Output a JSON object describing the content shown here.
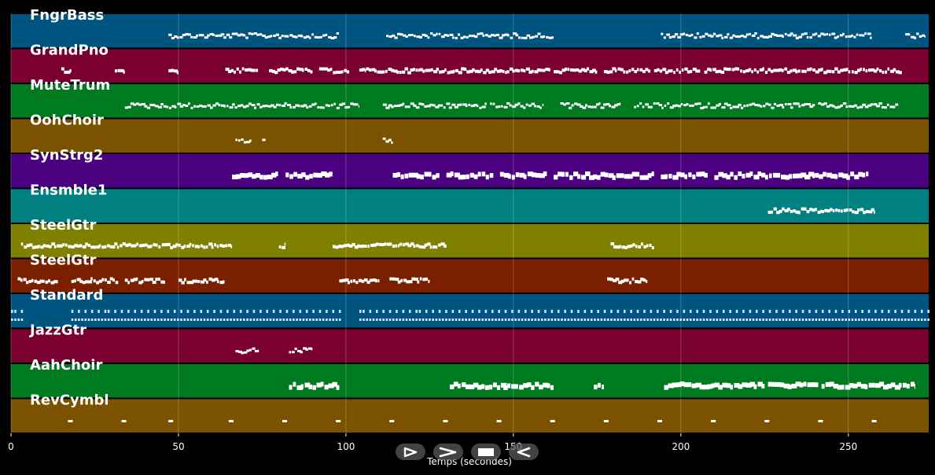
{
  "chart_data": {
    "type": "scatter",
    "title": "",
    "xlabel": "Temps (secondes)",
    "ylabel": "",
    "xlim": [
      0,
      274
    ],
    "x_ticks": [
      "0",
      "50",
      "100",
      "150",
      "200",
      "250"
    ],
    "x_tick_values": [
      0,
      50,
      100,
      150,
      200,
      250
    ],
    "grid": true,
    "tracks": [
      {
        "name": "FngrBass",
        "color": "#005580",
        "segments": [
          [
            47,
            98
          ],
          [
            112,
            162
          ],
          [
            194,
            257
          ],
          [
            267,
            273
          ]
        ],
        "style": "small"
      },
      {
        "name": "GrandPno",
        "color": "#7a0030",
        "segments": [
          [
            15,
            18
          ],
          [
            31,
            34
          ],
          [
            47,
            50
          ],
          [
            64,
            74
          ],
          [
            77,
            90
          ],
          [
            92,
            101
          ],
          [
            104,
            106
          ],
          [
            106,
            122
          ],
          [
            122,
            136
          ],
          [
            136,
            148
          ],
          [
            148,
            161
          ],
          [
            162,
            175
          ],
          [
            177,
            191
          ],
          [
            192,
            206
          ],
          [
            207,
            221
          ],
          [
            221,
            236
          ],
          [
            236,
            251
          ],
          [
            251,
            266
          ]
        ],
        "style": "medium"
      },
      {
        "name": "MuteTrum",
        "color": "#007a20",
        "segments": [
          [
            34,
            52
          ],
          [
            52,
            84
          ],
          [
            84,
            104
          ],
          [
            111,
            142
          ],
          [
            143,
            159
          ],
          [
            164,
            176
          ],
          [
            176,
            182
          ],
          [
            186,
            208
          ],
          [
            208,
            240
          ],
          [
            241,
            265
          ]
        ],
        "style": "small"
      },
      {
        "name": "OohChoir",
        "color": "#7a5200",
        "segments": [
          [
            67,
            72
          ],
          [
            75,
            76
          ],
          [
            111,
            114
          ]
        ],
        "style": "small"
      },
      {
        "name": "SynStrg2",
        "color": "#4b0080",
        "segments": [
          [
            66,
            80
          ],
          [
            82,
            96
          ],
          [
            114,
            128
          ],
          [
            130,
            144
          ],
          [
            146,
            160
          ],
          [
            162,
            176
          ],
          [
            176,
            192
          ],
          [
            194,
            208
          ],
          [
            210,
            224
          ],
          [
            224,
            240
          ],
          [
            240,
            256
          ]
        ],
        "style": "large"
      },
      {
        "name": "Ensmble1",
        "color": "#008080",
        "segments": [
          [
            226,
            242
          ],
          [
            242,
            258
          ]
        ],
        "style": "medium"
      },
      {
        "name": "SteelGtr",
        "color": "#808000",
        "segments": [
          [
            3,
            18
          ],
          [
            18,
            30
          ],
          [
            30,
            45
          ],
          [
            45,
            66
          ],
          [
            80,
            82
          ],
          [
            96,
            104
          ],
          [
            104,
            116
          ],
          [
            116,
            130
          ],
          [
            179,
            192
          ]
        ],
        "style": "medium"
      },
      {
        "name": "SteelGtr",
        "color": "#7a2000",
        "segments": [
          [
            2,
            14
          ],
          [
            18,
            32
          ],
          [
            34,
            46
          ],
          [
            50,
            64
          ],
          [
            98,
            110
          ],
          [
            113,
            125
          ],
          [
            178,
            190
          ]
        ],
        "style": "medium"
      },
      {
        "name": "Standard",
        "color": "#005580",
        "segments": [
          [
            0,
            3
          ],
          [
            18,
            98
          ],
          [
            104,
            274
          ]
        ],
        "style": "drum"
      },
      {
        "name": "JazzGtr",
        "color": "#7a0030",
        "segments": [
          [
            67,
            74
          ],
          [
            83,
            90
          ]
        ],
        "style": "small"
      },
      {
        "name": "AahChoir",
        "color": "#007a20",
        "segments": [
          [
            83,
            98
          ],
          [
            131,
            148
          ],
          [
            147,
            162
          ],
          [
            174,
            177
          ],
          [
            195,
            210
          ],
          [
            210,
            225
          ],
          [
            226,
            241
          ],
          [
            242,
            258
          ],
          [
            258,
            270
          ]
        ],
        "style": "large"
      },
      {
        "name": "RevCymbl",
        "color": "#7a5200",
        "segments": [
          [
            17,
            18
          ],
          [
            33,
            34
          ],
          [
            47,
            48
          ],
          [
            65,
            66
          ],
          [
            81,
            82
          ],
          [
            97,
            98
          ],
          [
            113,
            114
          ],
          [
            129,
            130
          ],
          [
            145,
            146
          ],
          [
            161,
            162
          ],
          [
            177,
            178
          ],
          [
            193,
            194
          ],
          [
            209,
            210
          ],
          [
            225,
            226
          ],
          [
            241,
            242
          ],
          [
            257,
            258
          ]
        ],
        "style": "single"
      }
    ]
  },
  "controls": {
    "play_icon": "play-icon",
    "fast_forward_icon": "fast-forward-icon",
    "stop_icon": "stop-icon",
    "rewind_icon": "rewind-icon"
  }
}
